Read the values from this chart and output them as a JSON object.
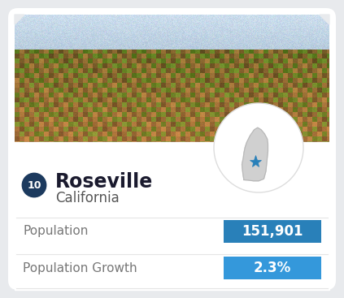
{
  "title": "Roseville",
  "subtitle": "California",
  "rank": "10",
  "population_label": "Population",
  "population_value": "151,901",
  "growth_label": "Population Growth",
  "growth_value": "2.3%",
  "card_bg": "#e8eaed",
  "inner_bg": "#ffffff",
  "rank_circle_color": "#1c3a5e",
  "rank_text_color": "#ffffff",
  "title_color": "#1a1a2e",
  "subtitle_color": "#555555",
  "label_color": "#777777",
  "pop_box_color": "#2980b9",
  "growth_box_color": "#3498db",
  "value_text_color": "#ffffff",
  "divider_color": "#e5e5e5",
  "ca_shape_color": "#d0d0d0",
  "ca_border_color": "#b8b8b8",
  "star_color": "#2980b9",
  "circle_bg": "#ffffff",
  "photo_sky_top": "#c5d8e8",
  "photo_sky_bot": "#a0b8c8",
  "photo_city_top": "#7a6540",
  "photo_city_mid": "#6b5830",
  "photo_city_bot": "#8a6535",
  "fig_w": 4.23,
  "fig_h": 3.67,
  "dpi": 100
}
